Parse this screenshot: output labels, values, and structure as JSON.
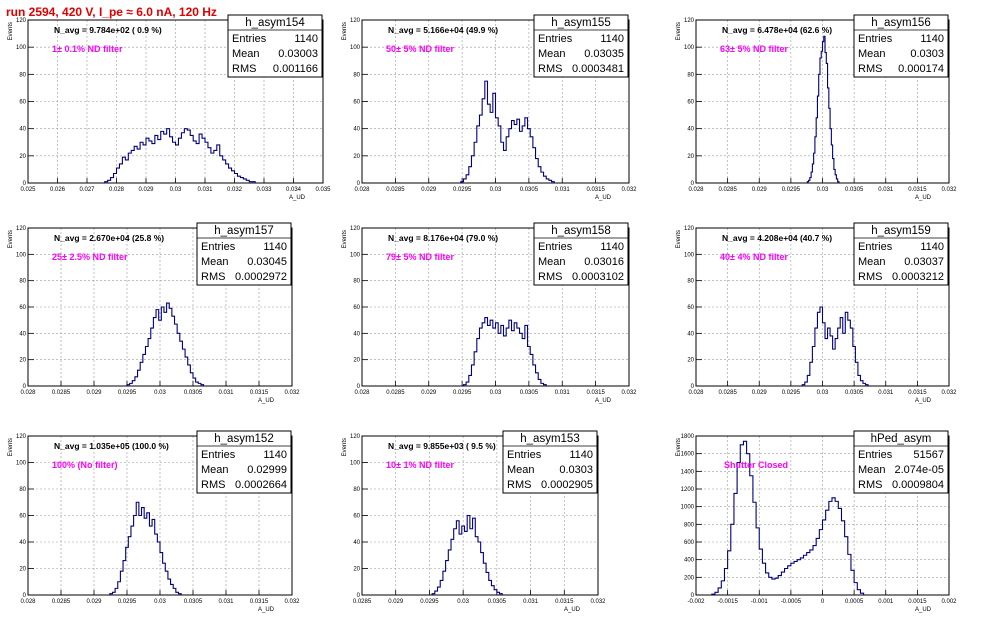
{
  "header": {
    "title": "run 2594,   420 V, I_pe ≈ 6.0 nA, 120 Hz"
  },
  "chart_data": [
    {
      "type": "bar",
      "name": "h_asym154",
      "title": "h_asym154",
      "stats": {
        "entries_label": "Entries",
        "entries": "1140",
        "mean_label": "Mean",
        "mean": "0.03003",
        "rms_label": "RMS",
        "rms": "0.001166"
      },
      "navg_label": "N_avg = 9.784e+02 ( 0.9 %)",
      "filter_label": "1± 0.1% ND filter",
      "xlabel": "A_UD",
      "ylabel": "Events",
      "xlim": [
        0.025,
        0.035
      ],
      "ylim": [
        0,
        120
      ],
      "xticks": [
        0.025,
        0.026,
        0.027,
        0.028,
        0.029,
        0.03,
        0.031,
        0.032,
        0.033,
        0.034,
        0.035
      ],
      "xtick_labels": [
        "0.025",
        "0.026",
        "0.027",
        "0.028",
        "0.029",
        "0.03",
        "0.031",
        "0.032",
        "0.033",
        "0.034",
        "0.035"
      ],
      "yticks": [
        0,
        20,
        40,
        60,
        80,
        100,
        120
      ],
      "bin_width": 0.0001,
      "x_start": 0.0276,
      "values": [
        1,
        2,
        4,
        7,
        11,
        14,
        19,
        17,
        22,
        24,
        27,
        25,
        30,
        28,
        33,
        31,
        29,
        35,
        32,
        38,
        36,
        40,
        34,
        30,
        28,
        33,
        37,
        40,
        39,
        35,
        31,
        29,
        36,
        33,
        30,
        26,
        22,
        24,
        28,
        20,
        17,
        14,
        11,
        9,
        7,
        5,
        4,
        3,
        2,
        1,
        1
      ]
    },
    {
      "type": "bar",
      "name": "h_asym155",
      "title": "h_asym155",
      "stats": {
        "entries_label": "Entries",
        "entries": "1140",
        "mean_label": "Mean",
        "mean": "0.03035",
        "rms_label": "RMS",
        "rms": "0.0003481"
      },
      "navg_label": "N_avg = 5.166e+04 (49.9 %)",
      "filter_label": "50± 5% ND filter",
      "xlabel": "A_UD",
      "ylabel": "Events",
      "xlim": [
        0.028,
        0.032
      ],
      "ylim": [
        0,
        120
      ],
      "xticks": [
        0.028,
        0.0285,
        0.029,
        0.0295,
        0.03,
        0.0305,
        0.031,
        0.0315,
        0.032
      ],
      "xtick_labels": [
        "0.028",
        "0.0285",
        "0.029",
        "0.0295",
        "0.03",
        "0.0305",
        "0.031",
        "0.0315",
        "0.032"
      ],
      "yticks": [
        0,
        20,
        40,
        60,
        80,
        100,
        120
      ],
      "bin_width": 4e-05,
      "x_start": 0.02948,
      "values": [
        1,
        3,
        6,
        12,
        20,
        30,
        42,
        50,
        62,
        75,
        58,
        52,
        66,
        48,
        42,
        30,
        24,
        34,
        40,
        46,
        43,
        47,
        38,
        42,
        48,
        40,
        34,
        26,
        18,
        12,
        8,
        5,
        3,
        2,
        1
      ]
    },
    {
      "type": "bar",
      "name": "h_asym156",
      "title": "h_asym156",
      "stats": {
        "entries_label": "Entries",
        "entries": "1140",
        "mean_label": "Mean",
        "mean": "0.0303",
        "rms_label": "RMS",
        "rms": "0.000174"
      },
      "navg_label": "N_avg = 6.478e+04 (62.6 %)",
      "filter_label": "63± 5% ND filter",
      "xlabel": "A_UD",
      "ylabel": "Events",
      "xlim": [
        0.028,
        0.032
      ],
      "ylim": [
        0,
        120
      ],
      "xticks": [
        0.028,
        0.0285,
        0.029,
        0.0295,
        0.03,
        0.0305,
        0.031,
        0.0315,
        0.032
      ],
      "xtick_labels": [
        "0.028",
        "0.0285",
        "0.029",
        "0.0295",
        "0.03",
        "0.0305",
        "0.031",
        "0.0315",
        "0.032"
      ],
      "yticks": [
        0,
        20,
        40,
        60,
        80,
        100,
        120
      ],
      "bin_width": 2e-05,
      "x_start": 0.02976,
      "values": [
        1,
        2,
        4,
        8,
        14,
        22,
        34,
        48,
        64,
        80,
        92,
        97,
        104,
        108,
        96,
        88,
        70,
        55,
        40,
        28,
        18,
        10,
        6,
        3,
        1
      ]
    },
    {
      "type": "bar",
      "name": "h_asym157",
      "title": "h_asym157",
      "stats": {
        "entries_label": "Entries",
        "entries": "1140",
        "mean_label": "Mean",
        "mean": "0.03045",
        "rms_label": "RMS",
        "rms": "0.0002972"
      },
      "navg_label": "N_avg = 2.670e+04 (25.8 %)",
      "filter_label": "25± 2.5% ND filter",
      "xlabel": "A_UD",
      "ylabel": "Events",
      "xlim": [
        0.028,
        0.032
      ],
      "ylim": [
        0,
        120
      ],
      "xticks": [
        0.028,
        0.0285,
        0.029,
        0.0295,
        0.03,
        0.0305,
        0.031,
        0.0315,
        0.032
      ],
      "xtick_labels": [
        "0.028",
        "0.0285",
        "0.029",
        "0.0295",
        "0.03",
        "0.0305",
        "0.031",
        "0.0315",
        "0.032"
      ],
      "yticks": [
        0,
        20,
        40,
        60,
        80,
        100,
        120
      ],
      "bin_width": 4e-05,
      "x_start": 0.0295,
      "values": [
        1,
        2,
        4,
        7,
        12,
        18,
        24,
        30,
        36,
        44,
        52,
        58,
        50,
        60,
        56,
        63,
        59,
        53,
        47,
        40,
        34,
        28,
        22,
        16,
        10,
        6,
        3,
        2,
        1
      ]
    },
    {
      "type": "bar",
      "name": "h_asym158",
      "title": "h_asym158",
      "stats": {
        "entries_label": "Entries",
        "entries": "1140",
        "mean_label": "Mean",
        "mean": "0.03016",
        "rms_label": "RMS",
        "rms": "0.0003102"
      },
      "navg_label": "N_avg = 8.176e+04 (79.0 %)",
      "filter_label": "79± 5% ND filter",
      "xlabel": "A_UD",
      "ylabel": "Events",
      "xlim": [
        0.028,
        0.032
      ],
      "ylim": [
        0,
        120
      ],
      "xticks": [
        0.028,
        0.0285,
        0.029,
        0.0295,
        0.03,
        0.0305,
        0.031,
        0.0315,
        0.032
      ],
      "xtick_labels": [
        "0.028",
        "0.0285",
        "0.029",
        "0.0295",
        "0.03",
        "0.0305",
        "0.031",
        "0.0315",
        "0.032"
      ],
      "yticks": [
        0,
        20,
        40,
        60,
        80,
        100,
        120
      ],
      "bin_width": 4e-05,
      "x_start": 0.02952,
      "values": [
        1,
        3,
        8,
        16,
        26,
        36,
        44,
        48,
        52,
        46,
        50,
        44,
        48,
        40,
        46,
        38,
        44,
        50,
        42,
        48,
        44,
        40,
        36,
        46,
        30,
        24,
        16,
        10,
        5,
        2,
        1
      ]
    },
    {
      "type": "bar",
      "name": "h_asym159",
      "title": "h_asym159",
      "stats": {
        "entries_label": "Entries",
        "entries": "1140",
        "mean_label": "Mean",
        "mean": "0.03037",
        "rms_label": "RMS",
        "rms": "0.0003212"
      },
      "navg_label": "N_avg = 4.208e+04 (40.7 %)",
      "filter_label": "40± 4% ND filter",
      "xlabel": "A_UD",
      "ylabel": "Events",
      "xlim": [
        0.028,
        0.032
      ],
      "ylim": [
        0,
        120
      ],
      "xticks": [
        0.028,
        0.0285,
        0.029,
        0.0295,
        0.03,
        0.0305,
        0.031,
        0.0315,
        0.032
      ],
      "xtick_labels": [
        "0.028",
        "0.0285",
        "0.029",
        "0.0295",
        "0.03",
        "0.0305",
        "0.031",
        "0.0315",
        "0.032"
      ],
      "yticks": [
        0,
        20,
        40,
        60,
        80,
        100,
        120
      ],
      "bin_width": 4e-05,
      "x_start": 0.02968,
      "values": [
        1,
        3,
        8,
        18,
        30,
        44,
        56,
        60,
        48,
        36,
        44,
        38,
        28,
        36,
        44,
        52,
        40,
        56,
        50,
        44,
        30,
        18,
        8,
        4,
        2,
        1
      ]
    },
    {
      "type": "bar",
      "name": "h_asym152",
      "title": "h_asym152",
      "stats": {
        "entries_label": "Entries",
        "entries": "1140",
        "mean_label": "Mean",
        "mean": "0.02999",
        "rms_label": "RMS",
        "rms": "0.0002664"
      },
      "navg_label": "N_avg = 1.035e+05 (100.0 %)",
      "filter_label": "100% (No filter)",
      "xlabel": "A_UD",
      "ylabel": "Events",
      "xlim": [
        0.028,
        0.032
      ],
      "ylim": [
        0,
        120
      ],
      "xticks": [
        0.028,
        0.0285,
        0.029,
        0.0295,
        0.03,
        0.0305,
        0.031,
        0.0315,
        0.032
      ],
      "xtick_labels": [
        "0.028",
        "0.0285",
        "0.029",
        "0.0295",
        "0.03",
        "0.0305",
        "0.031",
        "0.0315",
        "0.032"
      ],
      "yticks": [
        0,
        20,
        40,
        60,
        80,
        100,
        120
      ],
      "bin_width": 4e-05,
      "x_start": 0.02924,
      "values": [
        1,
        2,
        5,
        10,
        18,
        26,
        36,
        44,
        52,
        60,
        70,
        60,
        66,
        58,
        62,
        52,
        57,
        46,
        40,
        32,
        24,
        18,
        12,
        8,
        5,
        2,
        1
      ]
    },
    {
      "type": "bar",
      "name": "h_asym153",
      "title": "h_asym153",
      "stats": {
        "entries_label": "Entries",
        "entries": "1140",
        "mean_label": "Mean",
        "mean": "0.0303",
        "rms_label": "RMS",
        "rms": "0.0002905"
      },
      "navg_label": "N_avg = 9.855e+03 ( 9.5 %)",
      "filter_label": "10± 1% ND filter",
      "xlabel": "A_UD",
      "ylabel": "Events",
      "xlim": [
        0.0285,
        0.032
      ],
      "ylim": [
        0,
        120
      ],
      "xticks": [
        0.0285,
        0.029,
        0.0295,
        0.03,
        0.0305,
        0.031,
        0.0315,
        0.032
      ],
      "xtick_labels": [
        "0.0285",
        "0.029",
        "0.0295",
        "0.03",
        "0.0305",
        "0.031",
        "0.0315",
        "0.032"
      ],
      "yticks": [
        0,
        20,
        40,
        60,
        80,
        100,
        120
      ],
      "bin_width": 4e-05,
      "x_start": 0.02954,
      "values": [
        1,
        3,
        6,
        11,
        18,
        26,
        34,
        42,
        50,
        56,
        46,
        52,
        48,
        60,
        50,
        58,
        44,
        40,
        32,
        24,
        17,
        11,
        7,
        4,
        2,
        1
      ]
    },
    {
      "type": "bar",
      "name": "hPed_asym",
      "title": "hPed_asym",
      "stats": {
        "entries_label": "Entries",
        "entries": "51567",
        "mean_label": "Mean",
        "mean": "2.074e-05",
        "rms_label": "RMS",
        "rms": "0.0009804"
      },
      "navg_label": "",
      "filter_label": "Shutter Closed",
      "xlabel": "A_UD",
      "ylabel": "Events",
      "xlim": [
        -0.002,
        0.002
      ],
      "ylim": [
        0,
        1800
      ],
      "xticks": [
        -0.002,
        -0.0015,
        -0.001,
        -0.0005,
        0,
        0.0005,
        0.001,
        0.0015,
        0.002
      ],
      "xtick_labels": [
        "-0.002",
        "-0.0015",
        "-0.001",
        "-0.0005",
        "0",
        "0.0005",
        "0.001",
        "0.0015",
        "0.002"
      ],
      "yticks": [
        0,
        200,
        400,
        600,
        800,
        1000,
        1200,
        1400,
        1600,
        1800
      ],
      "bin_width": 5e-05,
      "x_start": -0.00175,
      "values": [
        10,
        30,
        80,
        160,
        300,
        500,
        800,
        1150,
        1500,
        1700,
        1740,
        1600,
        1350,
        1050,
        760,
        520,
        360,
        250,
        200,
        180,
        190,
        220,
        260,
        300,
        330,
        360,
        380,
        400,
        420,
        450,
        480,
        510,
        560,
        640,
        740,
        850,
        960,
        1060,
        1100,
        1060,
        980,
        840,
        660,
        460,
        280,
        140,
        60,
        20
      ]
    }
  ]
}
